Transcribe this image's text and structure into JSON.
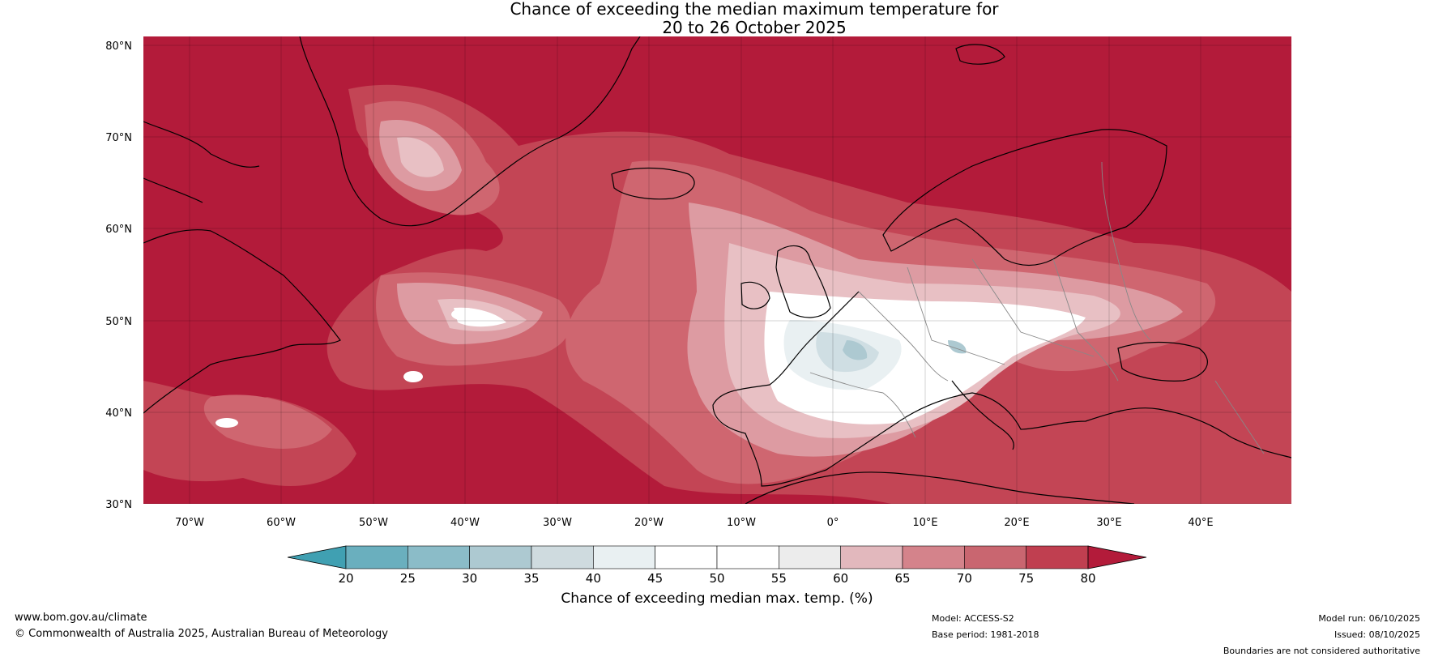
{
  "title": {
    "line1": "Chance of exceeding the median maximum temperature for",
    "line2": "20 to 26 October 2025"
  },
  "map": {
    "lat_labels": [
      "80°N",
      "70°N",
      "60°N",
      "50°N",
      "40°N",
      "30°N"
    ],
    "lon_labels": [
      "70°W",
      "60°W",
      "50°W",
      "40°W",
      "30°W",
      "20°W",
      "10°W",
      "0°",
      "10°E",
      "20°E",
      "30°E",
      "40°E"
    ],
    "colors": {
      "high": "#b31b3a",
      "p75": "#c34555",
      "p70": "#cf6670",
      "p65": "#dd9ba2",
      "p60": "#e8c0c4",
      "neutral": "#ffffff",
      "p45": "#e9f0f2",
      "p40": "#cfdee3",
      "p35": "#adc9d1",
      "coast": "#000000",
      "border": "#888888"
    }
  },
  "colorbar": {
    "ticks": [
      "20",
      "25",
      "30",
      "35",
      "40",
      "45",
      "50",
      "55",
      "60",
      "65",
      "70",
      "75",
      "80"
    ],
    "colors": [
      "#40a0b2",
      "#6aafbe",
      "#8bbcc8",
      "#adc9d1",
      "#cfdbdf",
      "#e9f0f2",
      "#ffffff",
      "#ffffff",
      "#ececec",
      "#e2b8bd",
      "#d4838b",
      "#c96670",
      "#c03f50",
      "#b31b3a"
    ],
    "label": "Chance of exceeding median max. temp. (%)"
  },
  "footer": {
    "website": "www.bom.gov.au/climate",
    "copyright": "© Commonwealth of Australia 2025, Australian Bureau of Meteorology",
    "model": "Model: ACCESS-S2",
    "base_period": "Base period: 1981-2018",
    "model_run": "Model run: 06/10/2025",
    "issued": "Issued: 08/10/2025",
    "disclaimer": "Boundaries are not considered authoritative"
  }
}
